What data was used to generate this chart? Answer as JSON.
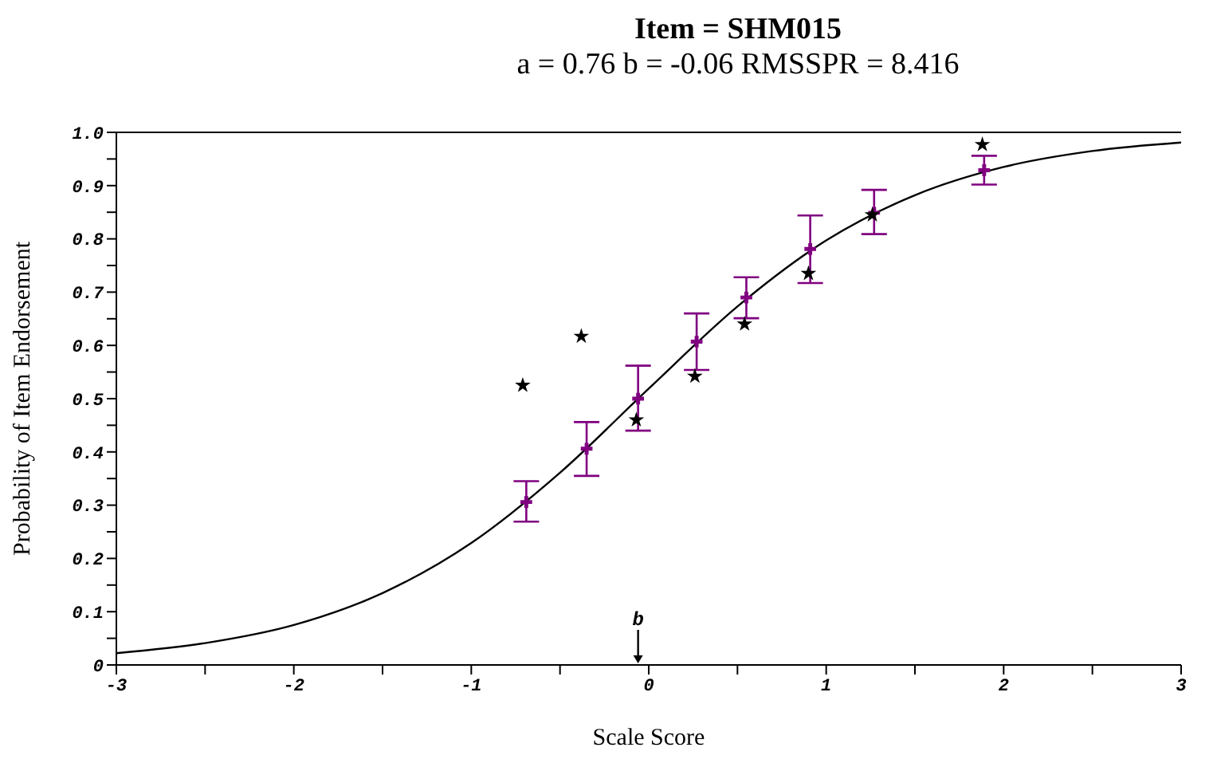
{
  "chart_data": {
    "type": "line",
    "title": "Item = SHM015",
    "subtitle": "a = 0.76    b = -0.06    RMSSPR = 8.416",
    "xlabel": "Scale Score",
    "ylabel": "Probability of Item Endorsement",
    "xlim": [
      -3,
      3
    ],
    "xticks": [
      -3,
      {
        "value": -2.5,
        "label": null
      },
      -2,
      {
        "value": -1.5,
        "label": null
      },
      -1,
      {
        "value": -0.5,
        "label": null
      },
      0,
      {
        "value": 0.5,
        "label": null
      },
      1,
      {
        "value": 1.5,
        "label": null
      },
      2,
      {
        "value": 2.5,
        "label": null
      },
      3
    ],
    "ylim": [
      0,
      1
    ],
    "yticks": [
      0,
      {
        "value": 0.05,
        "label": null
      },
      0.1,
      {
        "value": 0.15,
        "label": null
      },
      0.2,
      {
        "value": 0.25,
        "label": null
      },
      0.3,
      {
        "value": 0.35,
        "label": null
      },
      0.4,
      {
        "value": 0.45,
        "label": null
      },
      0.5,
      {
        "value": 0.55,
        "label": null
      },
      0.6,
      {
        "value": 0.65,
        "label": null
      },
      0.7,
      {
        "value": 0.75,
        "label": null
      },
      0.8,
      {
        "value": 0.85,
        "label": null
      },
      0.9,
      {
        "value": 0.95,
        "label": null
      },
      {
        "value": 1,
        "label": "1.0"
      }
    ],
    "grid": false,
    "ref_lines": [
      {
        "axis": "x",
        "value": -0.06,
        "label": "b",
        "color": "#000000"
      }
    ],
    "series": [
      {
        "color": "#000000",
        "marker": "none",
        "line_style": "solid",
        "x": [
          -3,
          -2.5,
          -2,
          -1.5,
          -1,
          -0.5,
          0,
          0.5,
          1,
          1.5,
          2,
          2.5,
          3
        ],
        "values": [
          0.022,
          0.041,
          0.075,
          0.135,
          0.229,
          0.361,
          0.519,
          0.673,
          0.797,
          0.882,
          0.935,
          0.965,
          0.981
        ]
      },
      {
        "type": "scatter",
        "color": "#800080",
        "marker": "cross",
        "x": [
          -0.69,
          -0.35,
          -0.06,
          0.27,
          0.55,
          0.91,
          1.27,
          1.89
        ],
        "values": [
          0.306,
          0.406,
          0.5,
          0.607,
          0.69,
          0.781,
          0.849,
          0.929
        ],
        "errors": [
          [
            0.269,
            0.345
          ],
          [
            0.355,
            0.456
          ],
          [
            0.44,
            0.562
          ],
          [
            0.554,
            0.66
          ],
          [
            0.651,
            0.728
          ],
          [
            0.717,
            0.844
          ],
          [
            0.809,
            0.892
          ],
          [
            0.902,
            0.956
          ]
        ]
      },
      {
        "type": "scatter",
        "color": "#000000",
        "marker": "star",
        "x": [
          -0.71,
          -0.38,
          -0.07,
          0.26,
          0.54,
          0.9,
          1.26,
          1.88
        ],
        "values": [
          0.525,
          0.617,
          0.46,
          0.542,
          0.64,
          0.735,
          0.845,
          0.977
        ]
      }
    ]
  }
}
